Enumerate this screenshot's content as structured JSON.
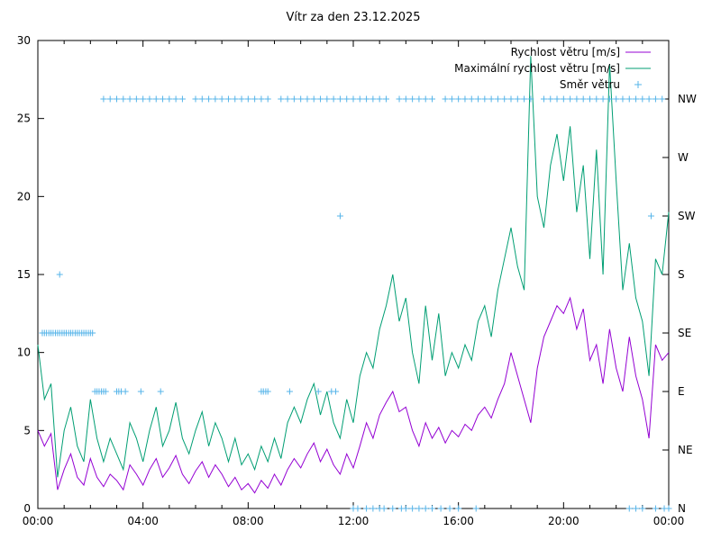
{
  "title": "Vítr za den 23.12.2025",
  "chart_data": {
    "type": "line",
    "title": "Vítr za den 23.12.2025",
    "grid": false,
    "legend_position": "top-right-inside",
    "x_ticks": [
      "00:00",
      "04:00",
      "08:00",
      "12:00",
      "16:00",
      "20:00",
      "00:00"
    ],
    "x_range_hours": [
      0,
      24
    ],
    "x_minor_tick_every_hours": 1,
    "y_left": {
      "min": 0,
      "max": 30,
      "ticks": [
        0,
        5,
        10,
        15,
        20,
        25,
        30
      ]
    },
    "y_right_labels": [
      "N",
      "NE",
      "E",
      "SE",
      "S",
      "SW",
      "W",
      "NW"
    ],
    "direction_values": {
      "N": 0,
      "NE": 3.75,
      "E": 7.5,
      "SE": 11.25,
      "S": 15,
      "SW": 18.75,
      "W": 22.5,
      "NW": 26.25
    },
    "x": [
      0,
      0.25,
      0.5,
      0.75,
      1,
      1.25,
      1.5,
      1.75,
      2,
      2.25,
      2.5,
      2.75,
      3,
      3.25,
      3.5,
      3.75,
      4,
      4.25,
      4.5,
      4.75,
      5,
      5.25,
      5.5,
      5.75,
      6,
      6.25,
      6.5,
      6.75,
      7,
      7.25,
      7.5,
      7.75,
      8,
      8.25,
      8.5,
      8.75,
      9,
      9.25,
      9.5,
      9.75,
      10,
      10.25,
      10.5,
      10.75,
      11,
      11.25,
      11.5,
      11.75,
      12,
      12.25,
      12.5,
      12.75,
      13,
      13.25,
      13.5,
      13.75,
      14,
      14.25,
      14.5,
      14.75,
      15,
      15.25,
      15.5,
      15.75,
      16,
      16.25,
      16.5,
      16.75,
      17,
      17.25,
      17.5,
      17.75,
      18,
      18.25,
      18.5,
      18.75,
      19,
      19.25,
      19.5,
      19.75,
      20,
      20.25,
      20.5,
      20.75,
      21,
      21.25,
      21.5,
      21.75,
      22,
      22.25,
      22.5,
      22.75,
      23,
      23.25,
      23.5,
      23.75,
      24
    ],
    "series": [
      {
        "name": "Rychlost větru [m/s]",
        "type": "line",
        "color": "#9400D3",
        "values": [
          5.0,
          4.0,
          4.8,
          1.2,
          2.5,
          3.5,
          2.0,
          1.5,
          3.2,
          2.0,
          1.4,
          2.2,
          1.8,
          1.2,
          2.8,
          2.2,
          1.5,
          2.5,
          3.2,
          2.0,
          2.6,
          3.4,
          2.2,
          1.6,
          2.4,
          3.0,
          2.0,
          2.8,
          2.2,
          1.4,
          2.0,
          1.2,
          1.6,
          1.0,
          1.8,
          1.3,
          2.2,
          1.5,
          2.5,
          3.2,
          2.6,
          3.5,
          4.2,
          3.0,
          3.8,
          2.8,
          2.2,
          3.5,
          2.6,
          4.0,
          5.5,
          4.5,
          6.0,
          6.8,
          7.5,
          6.2,
          6.5,
          5.0,
          4.0,
          5.5,
          4.5,
          5.2,
          4.2,
          5.0,
          4.6,
          5.4,
          5.0,
          6.0,
          6.5,
          5.8,
          7.0,
          8.0,
          10.0,
          8.5,
          7.0,
          5.5,
          9.0,
          11.0,
          12.0,
          13.0,
          12.5,
          13.5,
          11.5,
          12.8,
          9.5,
          10.5,
          8.0,
          11.5,
          9.0,
          7.5,
          11.0,
          8.5,
          7.0,
          4.5,
          10.5,
          9.5,
          10.0
        ]
      },
      {
        "name": "Maximální rychlost větru [m/s]",
        "type": "line",
        "color": "#009E73",
        "values": [
          10.5,
          7.0,
          8.0,
          2.0,
          5.0,
          6.5,
          4.0,
          3.0,
          7.0,
          4.5,
          3.0,
          4.5,
          3.5,
          2.5,
          5.5,
          4.5,
          3.0,
          5.0,
          6.5,
          4.0,
          5.0,
          6.8,
          4.5,
          3.5,
          5.0,
          6.2,
          4.0,
          5.5,
          4.5,
          3.0,
          4.5,
          2.8,
          3.5,
          2.5,
          4.0,
          3.0,
          4.5,
          3.2,
          5.5,
          6.5,
          5.5,
          7.0,
          8.0,
          6.0,
          7.5,
          5.5,
          4.5,
          7.0,
          5.5,
          8.5,
          10.0,
          9.0,
          11.5,
          13.0,
          15.0,
          12.0,
          13.5,
          10.0,
          8.0,
          13.0,
          9.5,
          12.5,
          8.5,
          10.0,
          9.0,
          10.5,
          9.5,
          12.0,
          13.0,
          11.0,
          14.0,
          16.0,
          18.0,
          15.5,
          14.0,
          29.0,
          20.0,
          18.0,
          22.0,
          24.0,
          21.0,
          24.5,
          19.0,
          22.0,
          16.0,
          23.0,
          15.0,
          28.5,
          21.0,
          14.0,
          17.0,
          13.5,
          12.0,
          8.5,
          16.0,
          15.0,
          19.0
        ]
      },
      {
        "name": "Směr větru",
        "type": "points",
        "marker": "+",
        "color": "#56B4E9",
        "times_by_direction": {
          "SE": [
            0.17,
            0.25,
            0.33,
            0.42,
            0.5,
            0.58,
            0.67,
            0.75,
            0.83,
            0.92,
            1,
            1.08,
            1.17,
            1.25,
            1.33,
            1.42,
            1.5,
            1.58,
            1.67,
            1.75,
            1.83,
            1.92,
            2,
            2.08
          ],
          "S": [
            0.83
          ],
          "E": [
            2.17,
            2.25,
            2.33,
            2.42,
            2.5,
            2.58,
            3,
            3.08,
            3.17,
            3.33,
            3.92,
            4.67,
            8.5,
            8.58,
            8.67,
            8.75,
            9.58,
            10.67,
            11.17,
            11.33
          ],
          "SW": [
            11.5,
            23.33
          ],
          "NW": [
            2.5,
            2.75,
            3,
            3.25,
            3.5,
            3.75,
            4,
            4.25,
            4.5,
            4.75,
            5,
            5.25,
            5.5,
            6,
            6.25,
            6.5,
            6.75,
            7,
            7.25,
            7.5,
            7.75,
            8,
            8.25,
            8.5,
            8.75,
            9.25,
            9.5,
            9.75,
            10,
            10.25,
            10.5,
            10.75,
            11,
            11.25,
            11.5,
            11.75,
            12,
            12.25,
            12.5,
            12.75,
            13,
            13.25,
            13.75,
            14,
            14.25,
            14.5,
            14.75,
            15,
            15.5,
            15.75,
            16,
            16.25,
            16.5,
            16.75,
            17,
            17.25,
            17.5,
            17.75,
            18,
            18.25,
            18.5,
            18.75,
            19.25,
            19.5,
            19.75,
            20,
            20.25,
            20.5,
            20.75,
            21,
            21.25,
            21.5,
            21.75,
            22,
            22.25,
            22.5,
            22.75,
            23,
            23.25,
            23.5,
            23.75
          ],
          "N": [
            12,
            12.17,
            12.5,
            12.75,
            13,
            13.17,
            13.5,
            13.83,
            14,
            14.25,
            14.5,
            14.75,
            15,
            15.33,
            15.67,
            16,
            16.67,
            22.5,
            22.75,
            23,
            23.5,
            23.83,
            24
          ]
        }
      }
    ]
  }
}
